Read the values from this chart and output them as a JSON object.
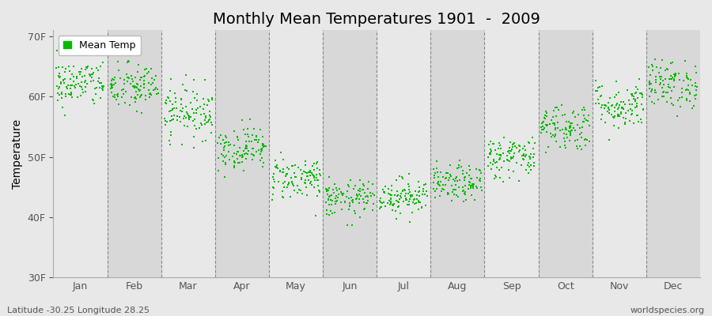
{
  "title": "Monthly Mean Temperatures 1901  -  2009",
  "ylabel": "Temperature",
  "xlabel_labels": [
    "Jan",
    "Feb",
    "Mar",
    "Apr",
    "May",
    "Jun",
    "Jul",
    "Aug",
    "Sep",
    "Oct",
    "Nov",
    "Dec"
  ],
  "ylim": [
    30,
    71
  ],
  "yticks": [
    30,
    40,
    50,
    60,
    70
  ],
  "ytick_labels": [
    "30F",
    "40F",
    "50F",
    "60F",
    "70F"
  ],
  "legend_label": "Mean Temp",
  "dot_color": "#00bb00",
  "background_color": "#e8e8e8",
  "band_color_light": "#e8e8e8",
  "band_color_dark": "#d8d8d8",
  "footer_left": "Latitude -30.25 Longitude 28.25",
  "footer_right": "worldspecies.org",
  "years": 109,
  "monthly_means_f": [
    62.2,
    61.5,
    57.5,
    51.5,
    46.5,
    43.0,
    43.5,
    45.5,
    50.0,
    55.0,
    58.5,
    62.0
  ],
  "monthly_stds_f": [
    2.0,
    2.0,
    2.2,
    1.8,
    1.8,
    1.5,
    1.5,
    1.5,
    1.8,
    2.0,
    2.0,
    2.0
  ],
  "title_fontsize": 14,
  "axis_fontsize": 9,
  "footer_fontsize": 8
}
